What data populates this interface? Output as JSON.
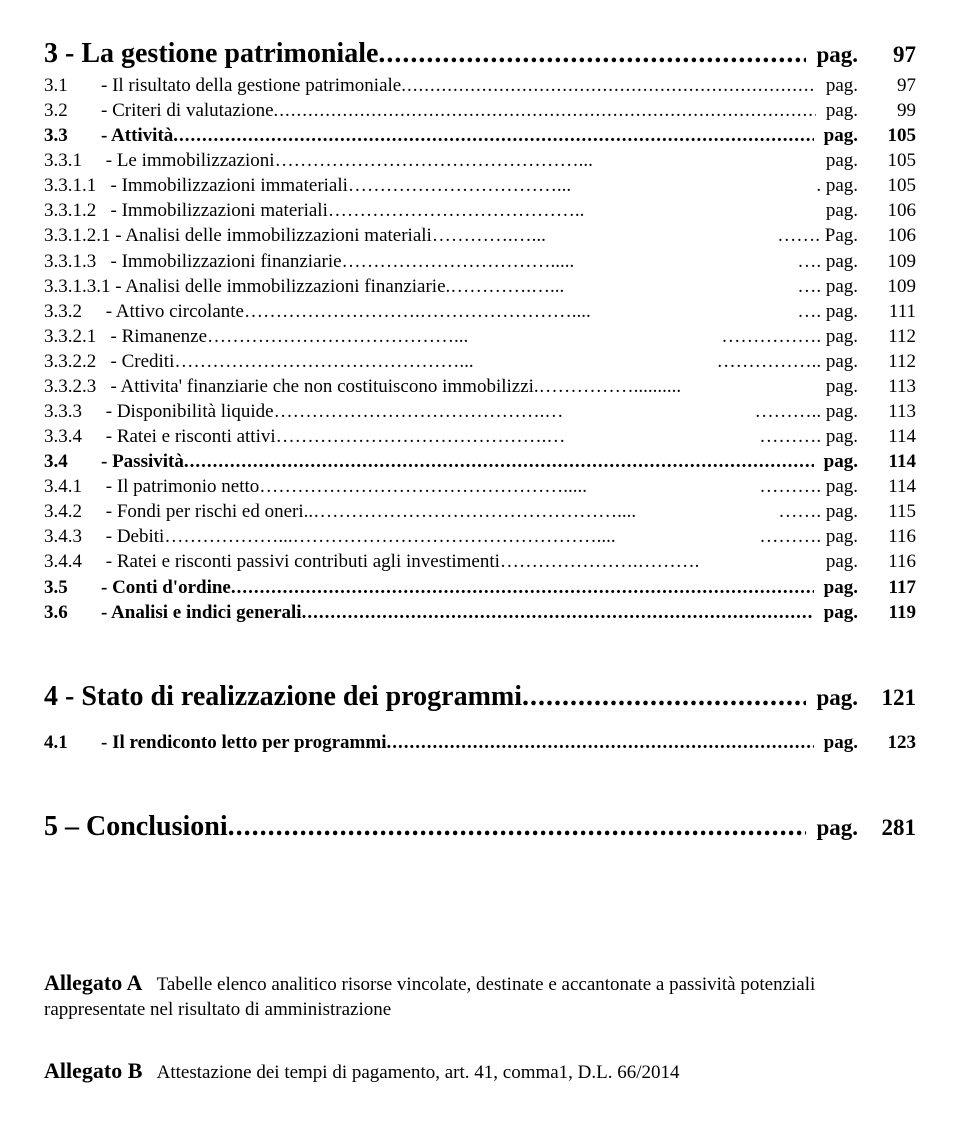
{
  "sectionA": {
    "heading": {
      "num": "3",
      "title": "- La gestione patrimoniale",
      "pag": "pag.",
      "page": "97"
    },
    "rows": [
      {
        "num": "3.1",
        "title": "- Il risultato della gestione patrimoniale",
        "leader": "periods",
        "bold": false,
        "pag": "pag.",
        "page": "97"
      },
      {
        "num": "3.2",
        "title": "- Criteri di valutazione",
        "leader": "periods",
        "bold": false,
        "pag": "pag.",
        "page": "99"
      },
      {
        "num": "3.3",
        "title": "- Attività",
        "leader": "periods",
        "bold": true,
        "pag": "pag.",
        "page": "105"
      },
      {
        "num": "3.3.1",
        "title": "- Le immobilizzazioni…………………………………………...",
        "leader": "",
        "bold": false,
        "pag": "pag.",
        "page": "105"
      },
      {
        "num": "3.3.1.1",
        "title": "- Immobilizzazioni immateriali……………………………...",
        "leader": "",
        "bold": false,
        "pag": ". pag.",
        "page": "105"
      },
      {
        "num": "3.3.1.2",
        "title": "- Immobilizzazioni materiali…………………………………..",
        "leader": "",
        "bold": false,
        "pag": "pag.",
        "page": "106"
      },
      {
        "num": "3.3.1.2.1",
        "title": "- Analisi delle immobilizzazioni materiali………….…...",
        "leader": "",
        "bold": false,
        "pag": "……. Pag.",
        "page": "106"
      },
      {
        "num": "3.3.1.3",
        "title": "- Immobilizzazioni finanziarie…………………………….....",
        "leader": "",
        "bold": false,
        "pag": "…. pag.",
        "page": "109"
      },
      {
        "num": "3.3.1.3.1",
        "title": "- Analisi delle immobilizzazioni finanziarie.………….…...",
        "leader": "",
        "bold": false,
        "pag": "…. pag.",
        "page": "109"
      },
      {
        "num": "3.3.2",
        "title": "- Attivo circolante……………………….……………………....",
        "leader": "",
        "bold": false,
        "pag": "…. pag.",
        "page": "111"
      },
      {
        "num": "3.3.2.1",
        "title": "- Rimanenze…………………………………...",
        "leader": "",
        "bold": false,
        "pag": "……………. pag.",
        "page": "112"
      },
      {
        "num": "3.3.2.2",
        "title": "- Crediti………………………………………...",
        "leader": "",
        "bold": false,
        "pag": "…………….. pag.",
        "page": "112"
      },
      {
        "num": "3.3.2.3",
        "title": "- Attivita' finanziarie che non costituiscono immobilizzi.……………..........",
        "leader": "",
        "bold": false,
        "pag": "pag.",
        "page": "113"
      },
      {
        "num": "3.3.3",
        "title": "- Disponibilità liquide…………………………………….…",
        "leader": "",
        "bold": false,
        "pag": "………..  pag.",
        "page": "113"
      },
      {
        "num": "3.3.4",
        "title": "- Ratei e risconti attivi…………………………………….…",
        "leader": "",
        "bold": false,
        "pag": "……….  pag.",
        "page": "114"
      },
      {
        "num": "3.4",
        "title": "- Passività",
        "leader": "periods",
        "bold": true,
        "pag": "pag.",
        "page": "114"
      },
      {
        "num": "3.4.1",
        "title": "- Il patrimonio netto………………………………………….....",
        "leader": "",
        "bold": false,
        "pag": "………. pag.",
        "page": "114"
      },
      {
        "num": "3.4.2",
        "title": "- Fondi per rischi ed oneri..…………………………………………....",
        "leader": "",
        "bold": false,
        "pag": "……. pag.",
        "page": "115"
      },
      {
        "num": "3.4.3",
        "title": "- Debiti………………...…………………………………………....",
        "leader": "",
        "bold": false,
        "pag": "………. pag.",
        "page": "116"
      },
      {
        "num": "3.4.4",
        "title": "- Ratei e risconti passivi contributi agli investimenti………………….……….",
        "leader": "",
        "bold": false,
        "pag": "pag.",
        "page": "116"
      },
      {
        "num": "3.5",
        "title": "- Conti d'ordine",
        "leader": "periods",
        "bold": true,
        "pag": "pag.",
        "page": "117"
      },
      {
        "num": "3.6",
        "title": "- Analisi e indici generali",
        "leader": "periods",
        "bold": true,
        "pag": "pag.",
        "page": "119"
      }
    ]
  },
  "sectionB": {
    "heading": {
      "num": "4",
      "title": "- Stato di realizzazione dei programmi",
      "pag": "pag.",
      "page": "121"
    },
    "rows": [
      {
        "num": "4.1",
        "title": "- Il rendiconto letto per programmi",
        "leader": "periods",
        "bold": true,
        "pag": "pag.",
        "page": "123"
      }
    ]
  },
  "sectionC": {
    "heading": {
      "num": "5",
      "title": "– Conclusioni",
      "pag": "pag.",
      "page": "281"
    }
  },
  "allegati": {
    "a": {
      "label": "Allegato A",
      "text": "Tabelle elenco analitico risorse vincolate, destinate e accantonate a passività potenziali rappresentate nel risultato di amministrazione"
    },
    "b": {
      "label": "Allegato B",
      "text": "Attestazione dei tempi di pagamento, art. 41, comma1, D.L. 66/2014"
    }
  }
}
